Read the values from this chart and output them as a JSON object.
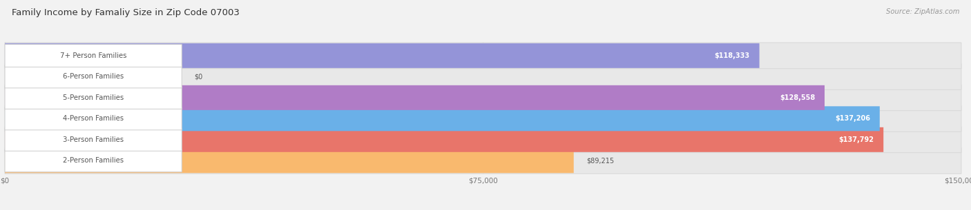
{
  "title": "Family Income by Famaliy Size in Zip Code 07003",
  "source": "Source: ZipAtlas.com",
  "categories": [
    "2-Person Families",
    "3-Person Families",
    "4-Person Families",
    "5-Person Families",
    "6-Person Families",
    "7+ Person Families"
  ],
  "values": [
    89215,
    137792,
    137206,
    128558,
    0,
    118333
  ],
  "labels": [
    "$89,215",
    "$137,792",
    "$137,206",
    "$128,558",
    "$0",
    "$118,333"
  ],
  "bar_colors": [
    "#f9b96e",
    "#e8756a",
    "#6ab0e8",
    "#b07cc6",
    "#5ecfcf",
    "#9494d8"
  ],
  "label_inside": [
    false,
    true,
    true,
    true,
    false,
    true
  ],
  "xlim_max": 150000,
  "xtick_vals": [
    0,
    75000,
    150000
  ],
  "xticklabels": [
    "$0",
    "$75,000",
    "$150,000"
  ],
  "bar_height": 0.62,
  "figsize": [
    14.06,
    3.05
  ],
  "dpi": 100,
  "bg_color": "#f2f2f2",
  "track_color": "#e8e8e8",
  "track_edge_color": "#d5d5d5",
  "pill_color": "white",
  "pill_edge_color": "#cccccc"
}
